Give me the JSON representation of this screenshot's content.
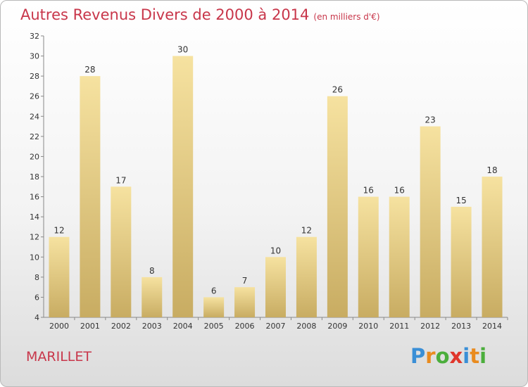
{
  "title": "Autres Revenus Divers de 2000 à 2014",
  "subtitle": "(en milliers d'€)",
  "place": "MARILLET",
  "logo": {
    "text": "Proxiti",
    "colors": [
      "#3a8fd6",
      "#e98b1f",
      "#4bae3c",
      "#e0362c",
      "#3a8fd6",
      "#e98b1f",
      "#4bae3c"
    ]
  },
  "colors": {
    "title": "#c8364a",
    "bar_light": "#f6e2a0",
    "bar_dark": "#c8ac62"
  },
  "chart_data": {
    "type": "bar",
    "categories": [
      "2000",
      "2001",
      "2002",
      "2003",
      "2004",
      "2005",
      "2006",
      "2007",
      "2008",
      "2009",
      "2010",
      "2011",
      "2012",
      "2013",
      "2014"
    ],
    "values": [
      12,
      28,
      17,
      8,
      30,
      6,
      7,
      10,
      12,
      26,
      16,
      16,
      23,
      15,
      18
    ],
    "ylim": [
      4,
      32
    ],
    "yticks": [
      4,
      6,
      8,
      10,
      12,
      14,
      16,
      18,
      20,
      22,
      24,
      26,
      28,
      30,
      32
    ],
    "grid": false,
    "data_labels": true
  }
}
